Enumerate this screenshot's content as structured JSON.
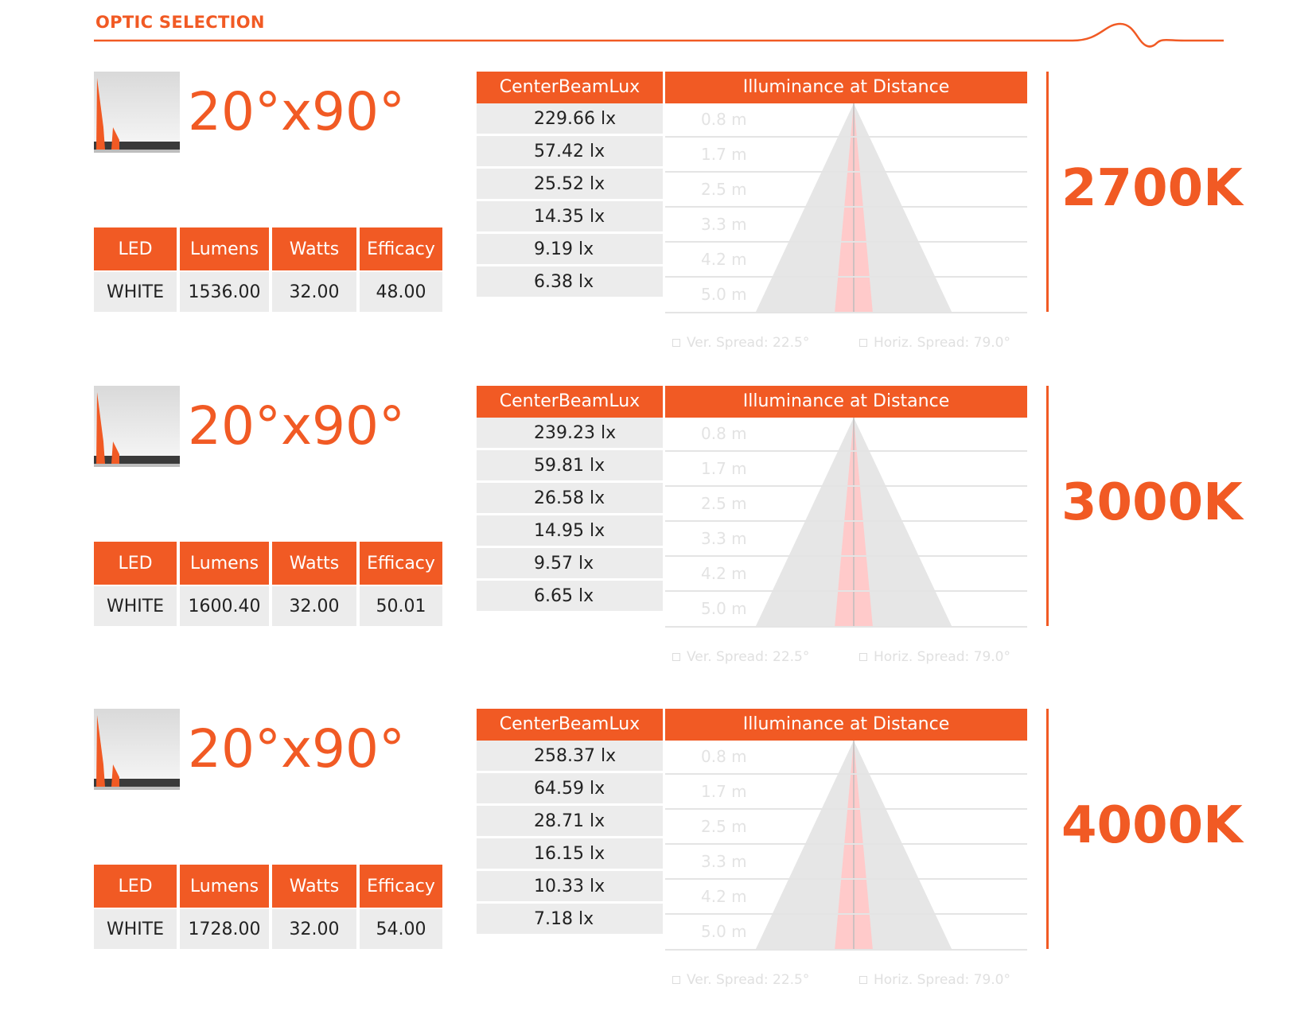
{
  "page": {
    "title": "OPTIC SELECTION"
  },
  "headers": {
    "led": "LED",
    "lumens": "Lumens",
    "watts": "Watts",
    "efficacy": "Efficacy",
    "centerbeamlux": "CenterBeamLux",
    "illuminance": "Illuminance at Distance"
  },
  "distances": [
    "0.8 m",
    "1.7 m",
    "2.5 m",
    "3.3 m",
    "4.2 m",
    "5.0 m"
  ],
  "colors": {
    "accent": "#f15a24",
    "cell_bg": "#ececec",
    "beam_core": "#ffc9c9",
    "beam_cone": "#e8e8e8"
  },
  "sections": [
    {
      "beam_angle": "20°x90°",
      "cct": "2700K",
      "spec": {
        "led": "WHITE",
        "lumens": "1536.00",
        "watts": "32.00",
        "efficacy": "48.00"
      },
      "lux": [
        "229.66 lx",
        "57.42 lx",
        "25.52 lx",
        "14.35 lx",
        "9.19 lx",
        "6.38 lx"
      ],
      "ver_spread": "Ver. Spread: 22.5°",
      "horiz_spread": "Horiz. Spread: 79.0°"
    },
    {
      "beam_angle": "20°x90°",
      "cct": "3000K",
      "spec": {
        "led": "WHITE",
        "lumens": "1600.40",
        "watts": "32.00",
        "efficacy": "50.01"
      },
      "lux": [
        "239.23 lx",
        "59.81 lx",
        "26.58 lx",
        "14.95 lx",
        "9.57 lx",
        "6.65 lx"
      ],
      "ver_spread": "Ver. Spread: 22.5°",
      "horiz_spread": "Horiz. Spread: 79.0°"
    },
    {
      "beam_angle": "20°x90°",
      "cct": "4000K",
      "spec": {
        "led": "WHITE",
        "lumens": "1728.00",
        "watts": "32.00",
        "efficacy": "54.00"
      },
      "lux": [
        "258.37 lx",
        "64.59 lx",
        "28.71 lx",
        "16.15 lx",
        "10.33 lx",
        "7.18 lx"
      ],
      "ver_spread": "Ver. Spread: 22.5°",
      "horiz_spread": "Horiz. Spread: 79.0°"
    }
  ]
}
